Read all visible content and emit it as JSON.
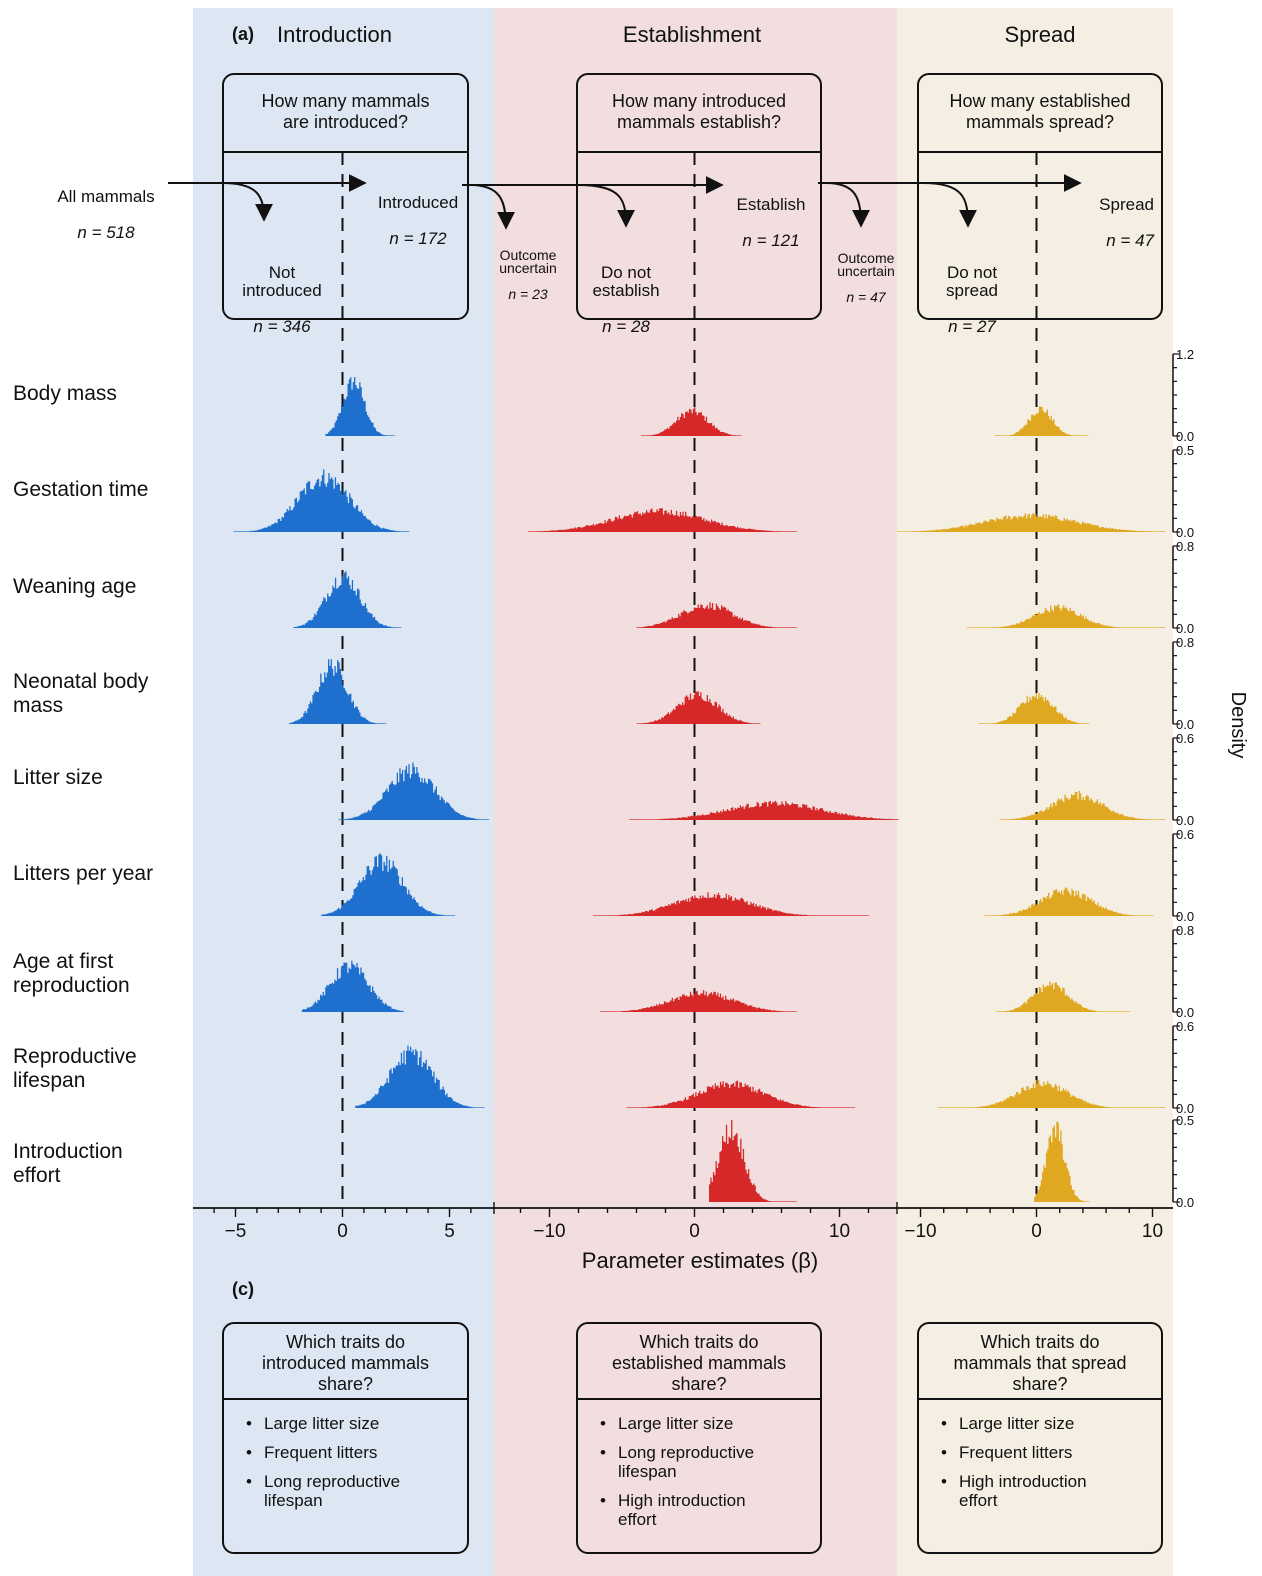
{
  "panel_a_label": "(a)",
  "panel_c_label": "(c)",
  "stages": [
    {
      "name": "Introduction",
      "color": "#dde7f3",
      "hist_color": "#1f6fcf",
      "question": "How many mammals\nare introduced?",
      "traits_question": "Which traits do\nintroduced mammals\nshare?",
      "traits": [
        "Large litter size",
        "Frequent litters",
        "Long reproductive\nlifespan"
      ]
    },
    {
      "name": "Establishment",
      "color": "#f2dede",
      "hist_color": "#d62828",
      "question": "How many introduced\nmammals establish?",
      "traits_question": "Which traits do\nestablished mammals\nshare?",
      "traits": [
        "Large litter size",
        "Long reproductive\nlifespan",
        "High introduction\neffort"
      ]
    },
    {
      "name": "Spread",
      "color": "#f4efe2",
      "hist_color": "#e0a820",
      "question": "How many established\nmammals spread?",
      "traits_question": "Which traits do\nmammals that spread\nshare?",
      "traits": [
        "Large litter size",
        "Frequent litters",
        "High introduction\neffort"
      ]
    }
  ],
  "flow": {
    "all": {
      "label": "All mammals",
      "n": "n = 518"
    },
    "introduced": {
      "label": "Introduced",
      "n": "n = 172"
    },
    "not_introduced": {
      "label": "Not\nintroduced",
      "n": "n = 346"
    },
    "uncertain1": {
      "label": "Outcome\nuncertain",
      "n": "n = 23"
    },
    "not_establish": {
      "label": "Do not\nestablish",
      "n": "n = 28"
    },
    "establish": {
      "label": "Establish",
      "n": "n = 121"
    },
    "uncertain2": {
      "label": "Outcome\nuncertain",
      "n": "n = 47"
    },
    "not_spread": {
      "label": "Do not\nspread",
      "n": "n = 27"
    },
    "spread": {
      "label": "Spread",
      "n": "n = 47"
    }
  },
  "chart_data": {
    "type": "histogram",
    "xlabel": "Parameter estimates (β)",
    "ylabel": "Density",
    "panels": [
      {
        "stage": "Introduction",
        "xlim": [
          -7,
          7
        ],
        "ticks": [
          -5,
          0,
          5
        ],
        "tick_labels": [
          "−5",
          "0",
          "5"
        ]
      },
      {
        "stage": "Establishment",
        "xlim": [
          -13,
          14
        ],
        "ticks": [
          -10,
          0,
          10
        ],
        "tick_labels": [
          "−10",
          "0",
          "10"
        ]
      },
      {
        "stage": "Spread",
        "xlim": [
          -12,
          12
        ],
        "ticks": [
          -10,
          0,
          10
        ],
        "tick_labels": [
          "−10",
          "0",
          "10"
        ]
      }
    ],
    "rows": [
      {
        "trait": "Body mass",
        "ylim": [
          0,
          1.2
        ],
        "ytick_labels": [
          "0.0",
          "1.2"
        ],
        "dists": [
          {
            "mean": 0.5,
            "sd": 0.5,
            "min": -0.8,
            "max": 2.4
          },
          {
            "mean": -0.2,
            "sd": 1.1,
            "min": -3.7,
            "max": 3.2
          },
          {
            "mean": 0.3,
            "sd": 1.0,
            "min": -3.6,
            "max": 4.4
          }
        ]
      },
      {
        "trait": "Gestation time",
        "ylim": [
          0,
          0.5
        ],
        "ytick_labels": [
          "0.0",
          "0.5"
        ],
        "dists": [
          {
            "mean": -0.9,
            "sd": 1.2,
            "min": -5.1,
            "max": 3.1
          },
          {
            "mean": -2.5,
            "sd": 3.2,
            "min": -11.5,
            "max": 7.0
          },
          {
            "mean": -0.5,
            "sd": 4.0,
            "min": -12.0,
            "max": 11.0
          }
        ]
      },
      {
        "trait": "Weaning age",
        "ylim": [
          0,
          0.8
        ],
        "ytick_labels": [
          "0.0",
          "0.8"
        ],
        "dists": [
          {
            "mean": 0.0,
            "sd": 0.8,
            "min": -2.3,
            "max": 2.7
          },
          {
            "mean": 0.8,
            "sd": 1.8,
            "min": -4.0,
            "max": 7.0
          },
          {
            "mean": 1.8,
            "sd": 2.0,
            "min": -6.0,
            "max": 11.0
          }
        ]
      },
      {
        "trait": "Neonatal body\nmass",
        "ylim": [
          0,
          0.8
        ],
        "ytick_labels": [
          "0.0",
          "0.8"
        ],
        "dists": [
          {
            "mean": -0.5,
            "sd": 0.7,
            "min": -2.5,
            "max": 2.0
          },
          {
            "mean": 0.2,
            "sd": 1.4,
            "min": -4.0,
            "max": 4.5
          },
          {
            "mean": 0.0,
            "sd": 1.4,
            "min": -5.0,
            "max": 4.5
          }
        ]
      },
      {
        "trait": "Litter size",
        "ylim": [
          0,
          0.6
        ],
        "ytick_labels": [
          "0.0",
          "0.6"
        ],
        "dists": [
          {
            "mean": 3.2,
            "sd": 1.1,
            "min": -0.2,
            "max": 6.8
          },
          {
            "mean": 5.5,
            "sd": 3.3,
            "min": -4.5,
            "max": 14.0
          },
          {
            "mean": 3.5,
            "sd": 2.2,
            "min": -3.2,
            "max": 11.0
          }
        ]
      },
      {
        "trait": "Litters per year",
        "ylim": [
          0,
          0.6
        ],
        "ytick_labels": [
          "0.0",
          "0.6"
        ],
        "dists": [
          {
            "mean": 1.8,
            "sd": 1.0,
            "min": -1.0,
            "max": 5.2
          },
          {
            "mean": 1.2,
            "sd": 2.6,
            "min": -7.0,
            "max": 12.0
          },
          {
            "mean": 2.5,
            "sd": 2.2,
            "min": -4.5,
            "max": 10.0
          }
        ]
      },
      {
        "trait": "Age at first\nreproduction",
        "ylim": [
          0,
          0.8
        ],
        "ytick_labels": [
          "0.0",
          "0.8"
        ],
        "dists": [
          {
            "mean": 0.3,
            "sd": 0.9,
            "min": -1.9,
            "max": 2.8
          },
          {
            "mean": 0.5,
            "sd": 2.2,
            "min": -6.5,
            "max": 7.0
          },
          {
            "mean": 1.2,
            "sd": 1.5,
            "min": -3.5,
            "max": 8.0
          }
        ]
      },
      {
        "trait": "Reproductive\nlifespan",
        "ylim": [
          0,
          0.6
        ],
        "ytick_labels": [
          "0.0",
          "0.6"
        ],
        "dists": [
          {
            "mean": 3.2,
            "sd": 1.0,
            "min": 0.6,
            "max": 6.6
          },
          {
            "mean": 2.5,
            "sd": 2.3,
            "min": -4.7,
            "max": 11.0
          },
          {
            "mean": 0.5,
            "sd": 2.2,
            "min": -8.5,
            "max": 11.0
          }
        ]
      },
      {
        "trait": "Introduction\neffort",
        "ylim": [
          0,
          0.5
        ],
        "ytick_labels": [
          "0.0",
          "0.5"
        ],
        "dists": [
          null,
          {
            "mean": 2.5,
            "sd": 0.9,
            "min": 1.0,
            "max": 7.0
          },
          {
            "mean": 1.6,
            "sd": 0.8,
            "min": -0.2,
            "max": 4.5
          }
        ]
      }
    ]
  }
}
